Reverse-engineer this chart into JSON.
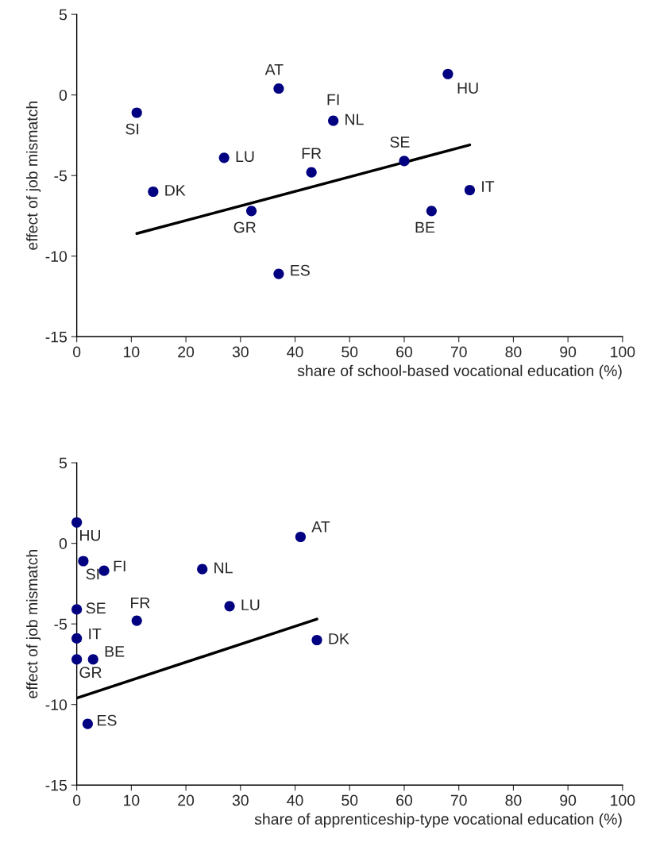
{
  "chart_data": [
    {
      "type": "scatter",
      "xlabel": "share of school-based vocational education (%)",
      "ylabel": "effect of job mismatch",
      "xlim": [
        0,
        100
      ],
      "xticks": [
        0,
        10,
        20,
        30,
        40,
        50,
        60,
        70,
        80,
        90,
        100
      ],
      "ylim": [
        -15,
        5
      ],
      "yticks": [
        -15,
        -10,
        -5,
        0,
        5
      ],
      "grid": false,
      "legend": false,
      "marker": "circle",
      "series": [
        {
          "color": "#000080",
          "x": [
            11,
            37,
            68,
            47,
            27,
            43,
            60,
            14,
            32,
            72,
            65,
            37
          ],
          "values": [
            -1.1,
            0.4,
            1.3,
            -1.6,
            -3.9,
            -4.8,
            -4.1,
            -6.0,
            -7.2,
            -5.9,
            -7.2,
            -11.1
          ]
        },
        {
          "type": "line",
          "color": "#000000",
          "x": [
            11,
            72
          ],
          "values": [
            -8.6,
            -3.1
          ],
          "marker": "none",
          "line_style": "solid"
        }
      ],
      "annotations": [
        {
          "text": "SI",
          "x": 11,
          "y": -1.1
        },
        {
          "text": "AT",
          "x": 37,
          "y": 0.4
        },
        {
          "text": "HU",
          "x": 68,
          "y": 1.3
        },
        {
          "text": "FI",
          "x": 47,
          "y": -1.6
        },
        {
          "text": "NL",
          "x": 47,
          "y": -1.6
        },
        {
          "text": "LU",
          "x": 27,
          "y": -3.9
        },
        {
          "text": "FR",
          "x": 43,
          "y": -4.8
        },
        {
          "text": "SE",
          "x": 60,
          "y": -4.1
        },
        {
          "text": "DK",
          "x": 14,
          "y": -6.0
        },
        {
          "text": "GR",
          "x": 32,
          "y": -7.2
        },
        {
          "text": "IT",
          "x": 72,
          "y": -5.9
        },
        {
          "text": "BE",
          "x": 65,
          "y": -7.2
        },
        {
          "text": "ES",
          "x": 37,
          "y": -11.1
        }
      ]
    },
    {
      "type": "scatter",
      "xlabel": "share of apprenticeship-type vocational education (%)",
      "ylabel": "effect of job mismatch",
      "xlim": [
        0,
        100
      ],
      "xticks": [
        0,
        10,
        20,
        30,
        40,
        50,
        60,
        70,
        80,
        90,
        100
      ],
      "ylim": [
        -15,
        5
      ],
      "yticks": [
        -15,
        -10,
        -5,
        0,
        5
      ],
      "grid": false,
      "legend": false,
      "marker": "circle",
      "series": [
        {
          "color": "#000080",
          "x": [
            0,
            41,
            1.2,
            5,
            23,
            0,
            11,
            28,
            0,
            44,
            0,
            3,
            2
          ],
          "values": [
            1.3,
            0.4,
            -1.1,
            -1.7,
            -1.6,
            -4.1,
            -4.8,
            -3.9,
            -5.9,
            -6.0,
            -7.2,
            -7.2,
            -11.2
          ]
        },
        {
          "type": "line",
          "color": "#000000",
          "x": [
            0,
            44
          ],
          "values": [
            -9.6,
            -4.7
          ],
          "marker": "none",
          "line_style": "solid"
        }
      ],
      "annotations": [
        {
          "text": "HU",
          "x": 0,
          "y": 1.3
        },
        {
          "text": "AT",
          "x": 41,
          "y": 0.4
        },
        {
          "text": "SI",
          "x": 1.2,
          "y": -1.1
        },
        {
          "text": "FI",
          "x": 5,
          "y": -1.7
        },
        {
          "text": "NL",
          "x": 23,
          "y": -1.6
        },
        {
          "text": "SE",
          "x": 0,
          "y": -4.1
        },
        {
          "text": "FR",
          "x": 11,
          "y": -4.8
        },
        {
          "text": "LU",
          "x": 28,
          "y": -3.9
        },
        {
          "text": "IT",
          "x": 0,
          "y": -5.9
        },
        {
          "text": "DK",
          "x": 44,
          "y": -6.0
        },
        {
          "text": "GR",
          "x": 0,
          "y": -7.2
        },
        {
          "text": "BE",
          "x": 3,
          "y": -7.2
        },
        {
          "text": "ES",
          "x": 2,
          "y": -11.2
        }
      ]
    }
  ]
}
